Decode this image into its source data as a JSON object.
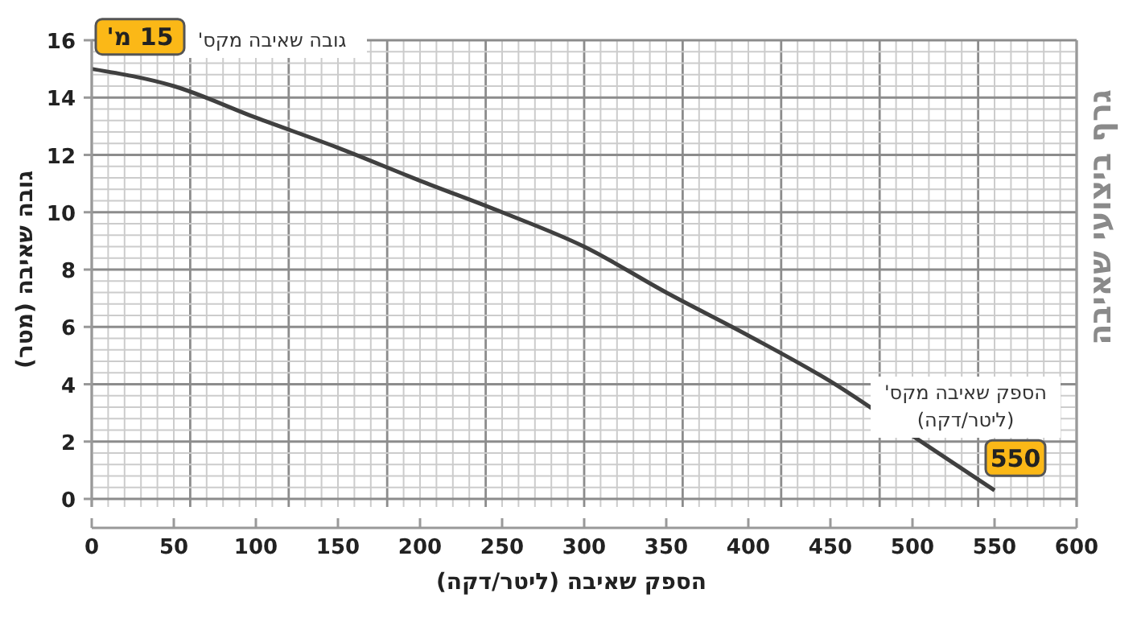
{
  "chart_data": {
    "type": "line",
    "title": "גרף ביצועי שאיבה",
    "xlabel": "הספק שאיבה (ליטר/דקה)",
    "ylabel": "גובה שאיבה (מטר)",
    "x": [
      0,
      50,
      100,
      150,
      200,
      250,
      300,
      350,
      400,
      450,
      500,
      550
    ],
    "series": [
      {
        "color": "#404040",
        "values": [
          15,
          14.4,
          13.3,
          12.25,
          11.1,
          10.0,
          8.8,
          7.2,
          5.7,
          4.1,
          2.2,
          0.3
        ]
      }
    ],
    "xlim": [
      0,
      600
    ],
    "xticks": [
      0,
      50,
      100,
      150,
      200,
      250,
      300,
      350,
      400,
      450,
      500,
      550,
      600
    ],
    "ylim": [
      0,
      16
    ],
    "yticks": [
      0,
      2,
      4,
      6,
      8,
      10,
      12,
      14,
      16
    ],
    "grid": true,
    "marker": "none",
    "line_style": "solid",
    "annotations": [
      "גובה שאיבה מקס'",
      {
        "text": "15 מ'",
        "x": 0,
        "y": 15
      },
      "הספק שאיבה מקס'\n(ליטר/דקה)",
      {
        "text": "550",
        "x": 550,
        "y": 0.3
      }
    ]
  }
}
